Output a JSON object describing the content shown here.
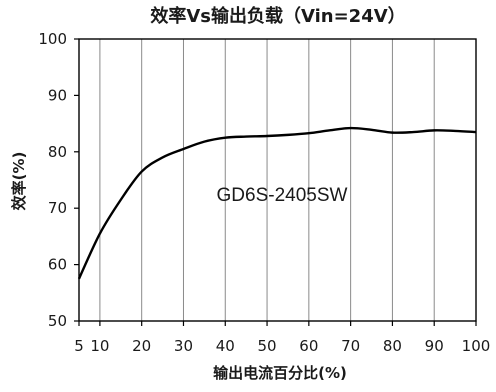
{
  "chart_data": {
    "type": "line",
    "title": "效率Vs输出负载（Vin=24V）",
    "xlabel": "输出电流百分比(%)",
    "ylabel": "效率(%)",
    "xlim": [
      5,
      100
    ],
    "ylim": [
      50,
      100
    ],
    "x_ticks": [
      5,
      10,
      20,
      30,
      40,
      50,
      60,
      70,
      80,
      90,
      100
    ],
    "y_ticks": [
      50,
      60,
      70,
      80,
      90,
      100
    ],
    "grid": "vertical",
    "annotation": "GD6S-2405SW",
    "series": [
      {
        "color": "#000000",
        "x": [
          5,
          10,
          15,
          20,
          25,
          30,
          35,
          40,
          45,
          50,
          55,
          60,
          65,
          70,
          75,
          80,
          85,
          90,
          95,
          100
        ],
        "y": [
          57.5,
          65.5,
          71.5,
          76.5,
          79,
          80.5,
          81.8,
          82.5,
          82.7,
          82.8,
          83,
          83.3,
          83.8,
          84.2,
          83.9,
          83.4,
          83.5,
          83.8,
          83.7,
          83.5
        ]
      }
    ]
  }
}
